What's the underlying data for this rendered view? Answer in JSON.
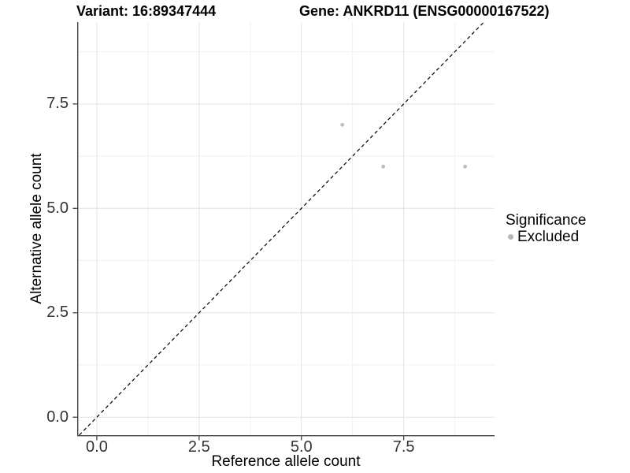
{
  "chart_data": {
    "type": "scatter",
    "titles": {
      "variant": "Variant: 16:89347444",
      "gene": "Gene: ANKRD11 (ENSG00000167522)"
    },
    "xlabel": "Reference allele count",
    "ylabel": "Alternative allele count",
    "xlim": [
      -0.48,
      9.72
    ],
    "ylim": [
      -0.43,
      9.46
    ],
    "x_ticks": [
      0.0,
      2.5,
      5.0,
      7.5
    ],
    "y_ticks": [
      0.0,
      2.5,
      5.0,
      7.5
    ],
    "x_minor_gridlines": [
      1.25,
      3.75,
      6.25,
      8.75
    ],
    "y_minor_gridlines": [
      1.25,
      3.75,
      6.25,
      8.75
    ],
    "grid": "major-and-minor",
    "identity_line": {
      "type": "abline",
      "slope": 1,
      "intercept": 0,
      "style": "dashed",
      "color": "#000000"
    },
    "series": [
      {
        "name": "Excluded",
        "color": "#bdbdbd",
        "points": [
          {
            "x": 6,
            "y": 7
          },
          {
            "x": 7,
            "y": 6
          },
          {
            "x": 9,
            "y": 6
          }
        ]
      }
    ],
    "legend": {
      "title": "Significance",
      "position": "right",
      "items": [
        {
          "label": "Excluded",
          "color": "#b8b8b8"
        }
      ]
    },
    "colors": {
      "axis_line": "#444444",
      "tick_label": "#333333",
      "grid_major": "#e2e2e2",
      "grid_minor": "#f0f0f0",
      "title": "#000000",
      "background": "#ffffff"
    }
  }
}
